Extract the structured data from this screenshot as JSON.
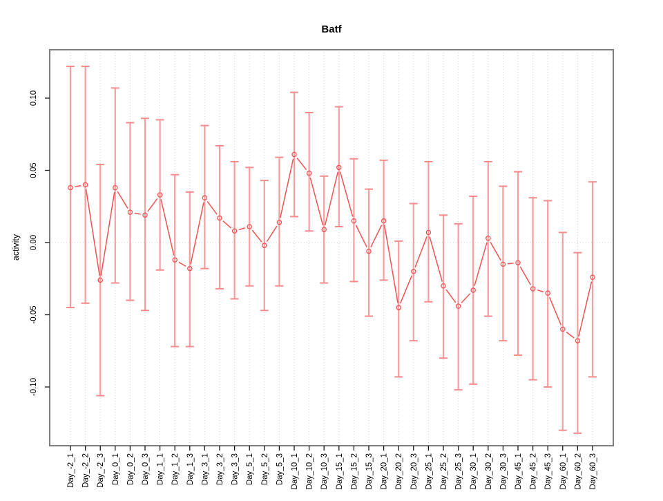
{
  "chart_data": {
    "type": "line",
    "title": "Batf",
    "xlabel": "",
    "ylabel": "activity",
    "legend": "none",
    "grid": "vertical dotted gridline at every category; dotted horizontal line at y=0",
    "marker": "open-circle",
    "line_style": "segments-with-gaps (R type='b')",
    "ylim": [
      -0.141,
      0.134
    ],
    "yticks": [
      0.1,
      0.05,
      0.0,
      -0.05,
      -0.1
    ],
    "ytick_labels": [
      "0.10",
      "0.05",
      "0.00",
      "-0.05",
      "-0.10"
    ],
    "categories": [
      "Day_-2_1",
      "Day_-2_2",
      "Day_-2_3",
      "Day_0_1",
      "Day_0_2",
      "Day_0_3",
      "Day_1_1",
      "Day_1_2",
      "Day_1_3",
      "Day_3_1",
      "Day_3_2",
      "Day_3_3",
      "Day_5_1",
      "Day_5_2",
      "Day_5_3",
      "Day_10_1",
      "Day_10_2",
      "Day_10_3",
      "Day_15_1",
      "Day_15_2",
      "Day_15_3",
      "Day_20_1",
      "Day_20_2",
      "Day_20_3",
      "Day_25_1",
      "Day_25_2",
      "Day_25_3",
      "Day_30_1",
      "Day_30_2",
      "Day_30_3",
      "Day_45_1",
      "Day_45_2",
      "Day_45_3",
      "Day_60_1",
      "Day_60_2",
      "Day_60_3"
    ],
    "series": [
      {
        "name": "activity",
        "values": [
          0.038,
          0.04,
          -0.026,
          0.038,
          0.021,
          0.019,
          0.033,
          -0.012,
          -0.018,
          0.031,
          0.017,
          0.008,
          0.011,
          -0.002,
          0.014,
          0.061,
          0.048,
          0.009,
          0.052,
          0.015,
          -0.006,
          0.015,
          -0.045,
          -0.02,
          0.007,
          -0.03,
          -0.044,
          -0.033,
          0.003,
          -0.015,
          -0.014,
          -0.032,
          -0.035,
          -0.06,
          -0.068,
          -0.024
        ],
        "upper": [
          0.122,
          0.122,
          0.054,
          0.107,
          0.083,
          0.086,
          0.085,
          0.047,
          0.035,
          0.081,
          0.067,
          0.056,
          0.052,
          0.043,
          0.059,
          0.104,
          0.09,
          0.046,
          0.094,
          0.058,
          0.037,
          0.057,
          0.001,
          0.027,
          0.056,
          0.019,
          0.013,
          0.032,
          0.056,
          0.039,
          0.049,
          0.031,
          0.029,
          0.007,
          -0.007,
          0.042
        ],
        "lower": [
          -0.045,
          -0.042,
          -0.106,
          -0.028,
          -0.04,
          -0.047,
          -0.019,
          -0.072,
          -0.072,
          -0.018,
          -0.032,
          -0.039,
          -0.03,
          -0.047,
          -0.03,
          0.018,
          0.008,
          -0.028,
          0.011,
          -0.027,
          -0.051,
          -0.026,
          -0.093,
          -0.068,
          -0.041,
          -0.08,
          -0.102,
          -0.098,
          -0.051,
          -0.068,
          -0.078,
          -0.095,
          -0.1,
          -0.13,
          -0.132,
          -0.093
        ]
      }
    ],
    "colors": {
      "point_line": "#F15151",
      "error_bar": "#F89E9E",
      "error_cap": "#F78A8A",
      "grid": "#CBCBCB",
      "frame": "#7E7E7E",
      "tick": "#1A1A1A",
      "text": "#000000",
      "background": "#FFFFFF"
    }
  }
}
